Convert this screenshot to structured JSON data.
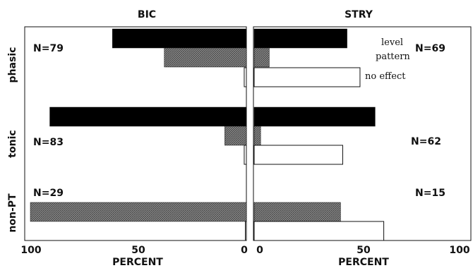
{
  "chart_data": [
    {
      "type": "bar",
      "orientation": "horizontal",
      "direction": "right-to-left",
      "title": "BIC",
      "xlabel": "PERCENT",
      "xlim": [
        100,
        0
      ],
      "xticks": [
        "100",
        "50",
        "0"
      ],
      "groups": [
        {
          "label": "phasic",
          "n_label": "N=79",
          "values": [
            62,
            38,
            1
          ]
        },
        {
          "label": "tonic",
          "n_label": "N=83",
          "values": [
            91,
            10,
            1
          ]
        },
        {
          "label": "non-PT",
          "n_label": "N=29",
          "values": [
            null,
            100,
            0
          ]
        }
      ]
    },
    {
      "type": "bar",
      "orientation": "horizontal",
      "direction": "left-to-right",
      "title": "STRY",
      "xlabel": "PERCENT",
      "xlim": [
        0,
        100
      ],
      "xticks": [
        "0",
        "50",
        "100"
      ],
      "groups": [
        {
          "label": "phasic",
          "n_label": "N=69",
          "values": [
            43,
            7,
            49
          ]
        },
        {
          "label": "tonic",
          "n_label": "N=62",
          "values": [
            56,
            3,
            41
          ]
        },
        {
          "label": "non-PT",
          "n_label": "N=15",
          "values": [
            null,
            40,
            60
          ]
        }
      ]
    }
  ],
  "series": [
    {
      "name": "level",
      "color": "#000000",
      "fill": "solid"
    },
    {
      "name": "pattern",
      "color": "#777777",
      "fill": "hatched"
    },
    {
      "name": "no effect",
      "color": "#ffffff",
      "fill": "outline"
    }
  ]
}
